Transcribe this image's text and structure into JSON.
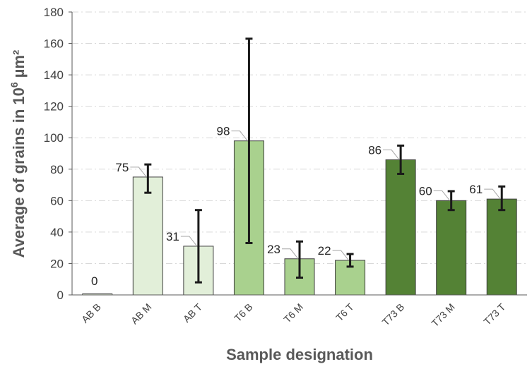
{
  "chart_data": {
    "type": "bar",
    "title": "",
    "xlabel": "Sample designation",
    "ylabel_main": "Average of grains in 10",
    "ylabel_exp": "6",
    "ylabel_unit": " µm²",
    "ylim": [
      0,
      180
    ],
    "yticks": [
      "0",
      "20",
      "40",
      "60",
      "80",
      "100",
      "120",
      "140",
      "160",
      "180"
    ],
    "ytick_values": [
      0,
      20,
      40,
      60,
      80,
      100,
      120,
      140,
      160,
      180
    ],
    "grid": "horizontal dash-dot",
    "legend": "none",
    "categories": [
      "AB B",
      "AB M",
      "AB T",
      "T6 B",
      "T6 M",
      "T6 T",
      "T73 B",
      "T73 M",
      "T73 T"
    ],
    "values": [
      0,
      75,
      31,
      98,
      23,
      22,
      86,
      60,
      61
    ],
    "data_labels": [
      "0",
      "75",
      "31",
      "98",
      "23",
      "22",
      "86",
      "60",
      "61"
    ],
    "error_low": [
      0,
      65,
      8,
      33,
      11,
      18,
      77,
      54,
      54
    ],
    "error_high": [
      0,
      83,
      54,
      163,
      34,
      26,
      95,
      66,
      69
    ],
    "colors": [
      "#e2efd9",
      "#e2efd9",
      "#e2efd9",
      "#a9d18e",
      "#a9d18e",
      "#a9d18e",
      "#548235",
      "#548235",
      "#548235"
    ],
    "bar_stroke": "#404040",
    "errorbar_color": "#1a1a1a",
    "grid_color": "#d9d9d9",
    "axis_color": "#595959"
  }
}
